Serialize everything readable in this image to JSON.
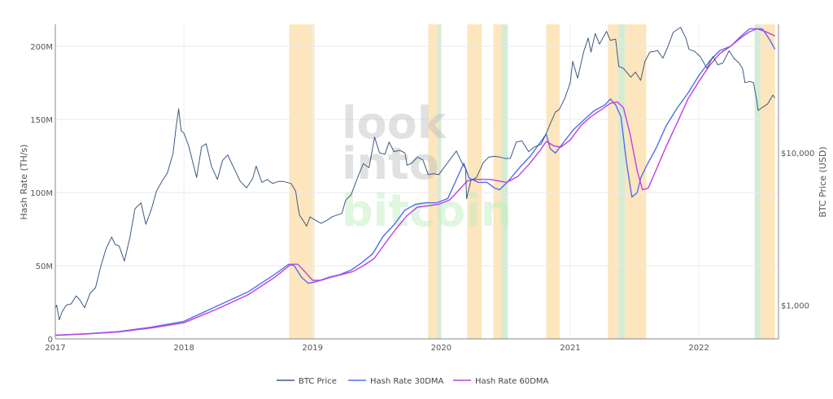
{
  "watermark": {
    "line1": "look",
    "line2": "into",
    "line3": "bitcoin"
  },
  "chart_data": {
    "type": "line",
    "title": "",
    "xlabel": "",
    "ylabel_left": "Hash Rate (TH/s)",
    "ylabel_right": "BTC Price (USD)",
    "grid": true,
    "legend_position": "bottom-center",
    "x_axis": {
      "type": "date",
      "range": [
        "2017-01-01",
        "2022-08-15"
      ],
      "ticks": [
        "2017",
        "2018",
        "2019",
        "2020",
        "2021",
        "2022"
      ],
      "tick_dates": [
        "2017-01-01",
        "2018-01-01",
        "2019-01-01",
        "2020-01-01",
        "2021-01-01",
        "2022-01-01"
      ]
    },
    "y_left": {
      "range": [
        0,
        215000000
      ],
      "ticks": [
        0,
        50000000,
        100000000,
        150000000,
        200000000
      ],
      "tick_labels": [
        "0",
        "50M",
        "100M",
        "150M",
        "200M"
      ]
    },
    "y_right": {
      "scale": "log",
      "range": [
        600,
        70000
      ],
      "ticks": [
        1000,
        10000
      ],
      "tick_labels": [
        "$1,000",
        "$10,000"
      ]
    },
    "colors": {
      "btc": "#3d5a80",
      "hr30": "#4f6ff0",
      "hr60": "#c13ee0",
      "band_orange": "#fde6bd",
      "band_green": "#d6ebd6"
    },
    "shaded_periods": [
      {
        "start": "2018-10-27",
        "end": "2019-01-06",
        "color": "orange"
      },
      {
        "start": "2019-11-25",
        "end": "2019-12-22",
        "color": "orange"
      },
      {
        "start": "2019-12-22",
        "end": "2019-12-31",
        "color": "green"
      },
      {
        "start": "2020-03-15",
        "end": "2020-04-25",
        "color": "orange"
      },
      {
        "start": "2020-05-28",
        "end": "2020-06-20",
        "color": "orange"
      },
      {
        "start": "2020-06-20",
        "end": "2020-07-08",
        "color": "green"
      },
      {
        "start": "2020-10-25",
        "end": "2020-12-02",
        "color": "orange"
      },
      {
        "start": "2021-04-18",
        "end": "2021-05-18",
        "color": "orange"
      },
      {
        "start": "2021-05-18",
        "end": "2021-06-05",
        "color": "green"
      },
      {
        "start": "2021-06-05",
        "end": "2021-08-05",
        "color": "orange"
      },
      {
        "start": "2022-06-08",
        "end": "2022-06-25",
        "color": "green"
      },
      {
        "start": "2022-06-25",
        "end": "2022-08-05",
        "color": "orange"
      }
    ],
    "series": [
      {
        "name": "BTC Price",
        "axis": "right",
        "x": [
          "2017-01-01",
          "2017-01-05",
          "2017-01-12",
          "2017-01-20",
          "2017-02-01",
          "2017-02-15",
          "2017-03-01",
          "2017-03-12",
          "2017-03-25",
          "2017-04-10",
          "2017-04-25",
          "2017-05-10",
          "2017-05-25",
          "2017-06-10",
          "2017-06-20",
          "2017-07-01",
          "2017-07-16",
          "2017-08-01",
          "2017-08-15",
          "2017-09-01",
          "2017-09-15",
          "2017-10-01",
          "2017-10-15",
          "2017-11-01",
          "2017-11-15",
          "2017-12-01",
          "2017-12-10",
          "2017-12-17",
          "2017-12-24",
          "2018-01-01",
          "2018-01-15",
          "2018-02-06",
          "2018-02-20",
          "2018-03-05",
          "2018-03-20",
          "2018-04-06",
          "2018-04-20",
          "2018-05-05",
          "2018-05-20",
          "2018-06-10",
          "2018-06-28",
          "2018-07-15",
          "2018-07-25",
          "2018-08-10",
          "2018-08-25",
          "2018-09-10",
          "2018-09-25",
          "2018-10-10",
          "2018-11-01",
          "2018-11-14",
          "2018-11-20",
          "2018-11-25",
          "2018-12-05",
          "2018-12-15",
          "2018-12-25",
          "2019-01-10",
          "2019-01-25",
          "2019-02-10",
          "2019-02-25",
          "2019-03-10",
          "2019-03-25",
          "2019-04-05",
          "2019-04-20",
          "2019-05-10",
          "2019-05-25",
          "2019-06-10",
          "2019-06-26",
          "2019-07-10",
          "2019-07-25",
          "2019-08-06",
          "2019-08-20",
          "2019-09-05",
          "2019-09-20",
          "2019-09-26",
          "2019-10-10",
          "2019-10-26",
          "2019-11-10",
          "2019-11-25",
          "2019-12-10",
          "2019-12-25",
          "2020-01-10",
          "2020-01-25",
          "2020-02-13",
          "2020-02-28",
          "2020-03-10",
          "2020-03-13",
          "2020-03-25",
          "2020-04-10",
          "2020-04-30",
          "2020-05-15",
          "2020-06-01",
          "2020-06-15",
          "2020-07-01",
          "2020-07-15",
          "2020-08-01",
          "2020-08-17",
          "2020-09-05",
          "2020-09-20",
          "2020-10-10",
          "2020-10-21",
          "2020-11-05",
          "2020-11-20",
          "2020-12-01",
          "2020-12-17",
          "2021-01-01",
          "2021-01-08",
          "2021-01-22",
          "2021-02-08",
          "2021-02-21",
          "2021-03-01",
          "2021-03-13",
          "2021-03-25",
          "2021-04-14",
          "2021-04-25",
          "2021-05-10",
          "2021-05-19",
          "2021-06-01",
          "2021-06-22",
          "2021-07-05",
          "2021-07-20",
          "2021-08-01",
          "2021-08-15",
          "2021-09-06",
          "2021-09-21",
          "2021-10-05",
          "2021-10-20",
          "2021-11-10",
          "2021-11-25",
          "2021-12-04",
          "2021-12-20",
          "2022-01-05",
          "2022-01-24",
          "2022-02-10",
          "2022-02-24",
          "2022-03-10",
          "2022-03-28",
          "2022-04-10",
          "2022-04-25",
          "2022-05-05",
          "2022-05-12",
          "2022-05-25",
          "2022-06-05",
          "2022-06-14",
          "2022-06-18",
          "2022-07-01",
          "2022-07-15",
          "2022-07-30",
          "2022-08-05"
        ],
        "y": [
          960,
          1000,
          800,
          900,
          1000,
          1020,
          1150,
          1080,
          960,
          1200,
          1300,
          1800,
          2350,
          2800,
          2500,
          2450,
          1950,
          2800,
          4300,
          4700,
          3400,
          4300,
          5600,
          6600,
          7400,
          9900,
          15000,
          19500,
          14000,
          13500,
          11000,
          6900,
          11000,
          11500,
          8200,
          6700,
          8900,
          9700,
          8200,
          6500,
          5900,
          6800,
          8200,
          6400,
          6700,
          6300,
          6500,
          6500,
          6300,
          5600,
          4500,
          3900,
          3600,
          3300,
          3800,
          3600,
          3450,
          3600,
          3800,
          3900,
          4000,
          4900,
          5300,
          7000,
          8500,
          8000,
          12700,
          10000,
          9800,
          11800,
          10200,
          10400,
          10000,
          8300,
          8600,
          9400,
          9000,
          7200,
          7300,
          7200,
          8100,
          9000,
          10300,
          8700,
          7900,
          5000,
          6600,
          6900,
          8700,
          9400,
          9500,
          9400,
          9200,
          9200,
          11800,
          12000,
          10200,
          10900,
          11400,
          12800,
          15500,
          18600,
          19300,
          23000,
          29000,
          40000,
          31000,
          46000,
          57000,
          46000,
          61000,
          52000,
          63000,
          55000,
          56000,
          37000,
          36000,
          31500,
          34000,
          30000,
          40000,
          46000,
          47000,
          42000,
          50000,
          62000,
          67000,
          57000,
          48000,
          46500,
          43000,
          36000,
          43000,
          38000,
          39000,
          47000,
          42000,
          39000,
          36000,
          29000,
          29500,
          29000,
          22500,
          19000,
          20000,
          21000,
          24000,
          23000
        ],
        "color": "#3d5a80"
      },
      {
        "name": "Hash Rate 30DMA",
        "axis": "left",
        "x": [
          "2017-01-01",
          "2017-04-01",
          "2017-07-01",
          "2017-10-01",
          "2018-01-01",
          "2018-04-01",
          "2018-07-01",
          "2018-09-15",
          "2018-10-25",
          "2018-11-10",
          "2018-12-01",
          "2018-12-20",
          "2019-01-10",
          "2019-02-15",
          "2019-03-20",
          "2019-04-20",
          "2019-05-20",
          "2019-06-20",
          "2019-07-20",
          "2019-08-20",
          "2019-09-20",
          "2019-10-20",
          "2019-11-20",
          "2019-12-20",
          "2020-01-20",
          "2020-02-15",
          "2020-03-05",
          "2020-03-20",
          "2020-04-15",
          "2020-05-10",
          "2020-06-01",
          "2020-06-15",
          "2020-07-10",
          "2020-08-10",
          "2020-09-10",
          "2020-10-10",
          "2020-10-25",
          "2020-11-05",
          "2020-11-20",
          "2020-12-15",
          "2021-01-10",
          "2021-02-10",
          "2021-03-10",
          "2021-04-10",
          "2021-04-25",
          "2021-05-10",
          "2021-05-25",
          "2021-06-10",
          "2021-06-25",
          "2021-07-10",
          "2021-07-20",
          "2021-08-05",
          "2021-09-01",
          "2021-10-01",
          "2021-11-01",
          "2021-12-01",
          "2022-01-01",
          "2022-02-01",
          "2022-03-01",
          "2022-04-01",
          "2022-05-01",
          "2022-05-25",
          "2022-06-10",
          "2022-06-30",
          "2022-07-20",
          "2022-08-05"
        ],
        "y": [
          2500000,
          3500000,
          5000000,
          8000000,
          12000000,
          22000000,
          32000000,
          44000000,
          51000000,
          50000000,
          42000000,
          38000000,
          39000000,
          42000000,
          44000000,
          47000000,
          52000000,
          58000000,
          70000000,
          78000000,
          88000000,
          92000000,
          93000000,
          93000000,
          96000000,
          110000000,
          120000000,
          110000000,
          107000000,
          107000000,
          103000000,
          102000000,
          108000000,
          117000000,
          125000000,
          135000000,
          140000000,
          130000000,
          127000000,
          135000000,
          143000000,
          150000000,
          156000000,
          160000000,
          164000000,
          160000000,
          152000000,
          120000000,
          97000000,
          100000000,
          110000000,
          118000000,
          130000000,
          146000000,
          158000000,
          168000000,
          180000000,
          190000000,
          197000000,
          200000000,
          207000000,
          212000000,
          212000000,
          212000000,
          205000000,
          198000000
        ],
        "color": "#4f6ff0"
      },
      {
        "name": "Hash Rate 60DMA",
        "axis": "left",
        "x": [
          "2017-01-01",
          "2017-04-01",
          "2017-07-01",
          "2017-10-01",
          "2018-01-01",
          "2018-04-01",
          "2018-07-01",
          "2018-09-15",
          "2018-11-01",
          "2018-11-20",
          "2018-12-10",
          "2019-01-01",
          "2019-01-25",
          "2019-02-20",
          "2019-03-25",
          "2019-04-25",
          "2019-05-25",
          "2019-06-25",
          "2019-07-25",
          "2019-08-25",
          "2019-09-25",
          "2019-10-25",
          "2019-11-25",
          "2019-12-25",
          "2020-01-25",
          "2020-02-25",
          "2020-03-15",
          "2020-04-01",
          "2020-04-25",
          "2020-05-20",
          "2020-06-10",
          "2020-07-05",
          "2020-08-05",
          "2020-09-05",
          "2020-10-05",
          "2020-10-25",
          "2020-11-15",
          "2020-12-05",
          "2021-01-01",
          "2021-02-01",
          "2021-03-01",
          "2021-04-01",
          "2021-04-25",
          "2021-05-15",
          "2021-06-01",
          "2021-06-20",
          "2021-07-10",
          "2021-07-25",
          "2021-08-10",
          "2021-09-01",
          "2021-10-01",
          "2021-11-01",
          "2021-12-01",
          "2022-01-01",
          "2022-02-01",
          "2022-03-01",
          "2022-04-01",
          "2022-05-01",
          "2022-05-25",
          "2022-06-15",
          "2022-07-10",
          "2022-08-05"
        ],
        "y": [
          2400000,
          3400000,
          4800000,
          7500000,
          11000000,
          20000000,
          30000000,
          42000000,
          51000000,
          51000000,
          46000000,
          40000000,
          40000000,
          42000000,
          44000000,
          46000000,
          50000000,
          55000000,
          65000000,
          75000000,
          84000000,
          90000000,
          91000000,
          92000000,
          95000000,
          103000000,
          108000000,
          109000000,
          109000000,
          109000000,
          108000000,
          107000000,
          111000000,
          119000000,
          128000000,
          135000000,
          132000000,
          131000000,
          136000000,
          146000000,
          152000000,
          157000000,
          161000000,
          162000000,
          158000000,
          140000000,
          115000000,
          102000000,
          103000000,
          115000000,
          132000000,
          148000000,
          164000000,
          176000000,
          187000000,
          195000000,
          200000000,
          206000000,
          210000000,
          212000000,
          210000000,
          207000000
        ],
        "color": "#c13ee0"
      }
    ]
  }
}
